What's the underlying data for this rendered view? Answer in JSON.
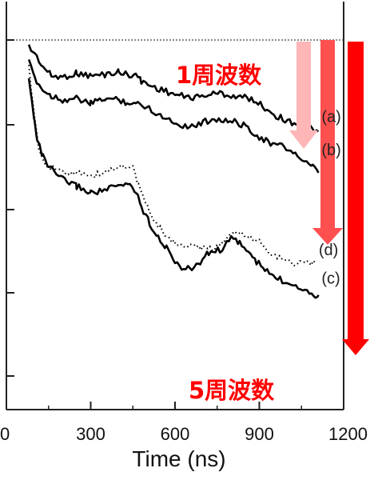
{
  "chart_data": {
    "type": "line",
    "xlabel": "Time (ns)",
    "ylabel": "",
    "xlim": [
      0,
      1200
    ],
    "xticks": [
      0,
      300,
      600,
      900,
      1200
    ],
    "grid": false,
    "reference_line": "dotted horizontal baseline at top",
    "series": [
      {
        "name": "(a)",
        "style": "solid",
        "color": "#000000",
        "x": [
          80,
          100,
          130,
          160,
          200,
          250,
          300,
          350,
          400,
          430,
          460,
          480,
          520,
          560,
          600,
          640,
          680,
          720,
          760,
          800,
          840,
          880,
          920,
          960,
          1000,
          1040,
          1080,
          1110
        ],
        "y": [
          0.95,
          0.9,
          0.8,
          0.73,
          0.72,
          0.75,
          0.73,
          0.74,
          0.76,
          0.74,
          0.74,
          0.69,
          0.65,
          0.62,
          0.59,
          0.57,
          0.57,
          0.59,
          0.6,
          0.58,
          0.57,
          0.55,
          0.49,
          0.43,
          0.39,
          0.37,
          0.34,
          0.31
        ]
      },
      {
        "name": "(b)",
        "style": "solid",
        "color": "#000000",
        "x": [
          80,
          100,
          130,
          160,
          200,
          250,
          300,
          350,
          400,
          430,
          460,
          500,
          540,
          580,
          620,
          660,
          700,
          740,
          780,
          820,
          860,
          900,
          940,
          980,
          1020,
          1060,
          1090,
          1110
        ],
        "y": [
          0.83,
          0.72,
          0.62,
          0.58,
          0.55,
          0.56,
          0.52,
          0.56,
          0.55,
          0.53,
          0.52,
          0.5,
          0.44,
          0.4,
          0.36,
          0.35,
          0.38,
          0.41,
          0.39,
          0.38,
          0.34,
          0.27,
          0.22,
          0.2,
          0.16,
          0.08,
          0.04,
          0.0
        ]
      },
      {
        "name": "(c)",
        "style": "solid",
        "color": "#000000",
        "x": [
          80,
          90,
          100,
          110,
          130,
          150,
          170,
          200,
          250,
          300,
          350,
          400,
          440,
          460,
          480,
          510,
          540,
          570,
          600,
          630,
          660,
          690,
          720,
          760,
          800,
          830,
          860,
          890,
          920,
          950,
          990,
          1030,
          1070,
          1100,
          1110
        ],
        "y": [
          0.7,
          0.55,
          0.4,
          0.25,
          0.12,
          0.05,
          0.0,
          -0.05,
          -0.1,
          -0.15,
          -0.13,
          -0.1,
          -0.08,
          -0.14,
          -0.25,
          -0.38,
          -0.48,
          -0.57,
          -0.66,
          -0.73,
          -0.72,
          -0.67,
          -0.6,
          -0.58,
          -0.5,
          -0.52,
          -0.6,
          -0.67,
          -0.73,
          -0.78,
          -0.82,
          -0.84,
          -0.89,
          -0.92,
          -0.92
        ]
      },
      {
        "name": "(d)",
        "style": "dotted",
        "color": "#000000",
        "x": [
          80,
          90,
          100,
          115,
          130,
          150,
          180,
          220,
          260,
          300,
          340,
          380,
          420,
          450,
          470,
          500,
          540,
          580,
          620,
          660,
          700,
          740,
          780,
          820,
          860,
          900,
          940,
          980,
          1020,
          1060,
          1100
        ],
        "y": [
          0.8,
          0.6,
          0.4,
          0.2,
          0.08,
          0.04,
          0.02,
          0.0,
          0.01,
          -0.03,
          0.0,
          0.03,
          0.05,
          0.04,
          -0.1,
          -0.25,
          -0.4,
          -0.5,
          -0.55,
          -0.55,
          -0.57,
          -0.57,
          -0.5,
          -0.45,
          -0.48,
          -0.52,
          -0.6,
          -0.65,
          -0.68,
          -0.68,
          -0.68
        ]
      }
    ],
    "annotations": {
      "top_text": "1周波数",
      "bottom_text": "5周波数",
      "arrows": [
        {
          "label": "1周波数",
          "color": "#ffb6b6",
          "target": "(a)"
        },
        {
          "label": "",
          "color": "#ff5a5a",
          "target": "(b)"
        },
        {
          "label": "5周波数",
          "color": "#ff0000",
          "target": "(c)"
        }
      ]
    }
  }
}
